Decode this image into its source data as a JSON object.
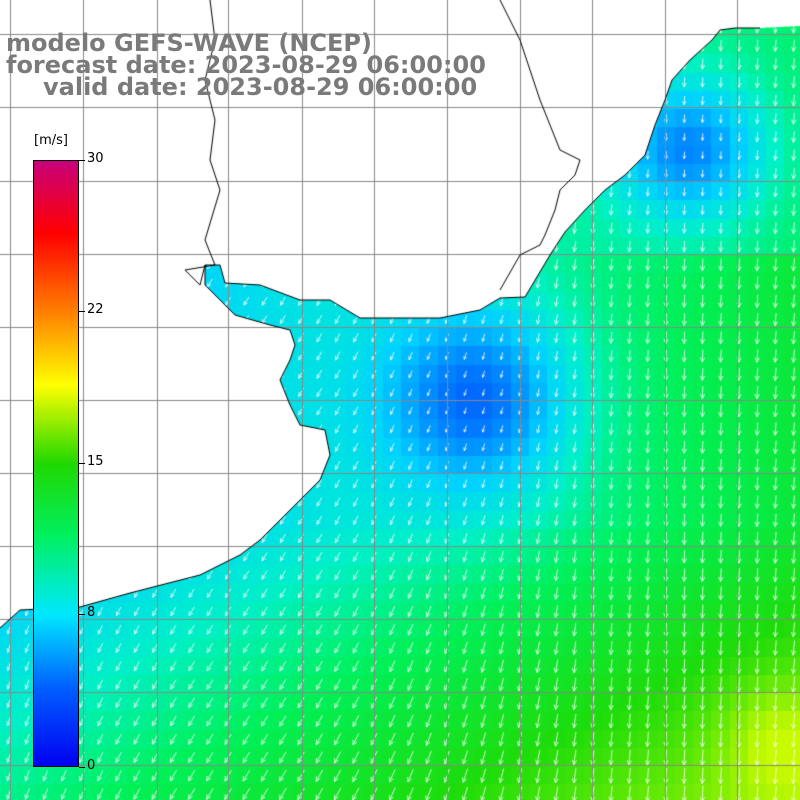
{
  "title": {
    "model": "modelo GEFS-WAVE (NCEP)",
    "forecast": "forecast date: 2023-08-29 06:00:00",
    "valid": "valid date: 2023-08-29 06:00:00"
  },
  "colorbar": {
    "unit": "[m/s]",
    "ticks": [
      {
        "value": 0,
        "label": "0"
      },
      {
        "value": 8,
        "label": "8"
      },
      {
        "value": 15,
        "label": "15"
      },
      {
        "value": 22,
        "label": "22"
      },
      {
        "value": 30,
        "label": "30"
      }
    ],
    "min": 0,
    "max": 30,
    "colors": [
      "#0000f0",
      "#0060ff",
      "#00e8ff",
      "#00f060",
      "#20d800",
      "#ffff00",
      "#ff8000",
      "#ff0000",
      "#c8007a"
    ]
  },
  "map": {
    "water_color": "#00c8ff",
    "grid": true,
    "coastline_color": "#000000",
    "arrow_color": "#ffffff"
  }
}
